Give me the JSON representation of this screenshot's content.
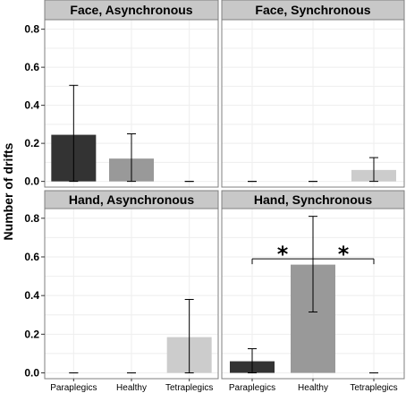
{
  "colors": {
    "strip_bg": "#c8c8c8",
    "grid": "#eeeeee",
    "panel_border": "#7f7f7f",
    "error_bar": "#000000",
    "bar_fills": [
      "#333333",
      "#999999",
      "#cccccc"
    ]
  },
  "chart_data": {
    "type": "bar",
    "layout": "facet-grid-2x2",
    "ylabel": "Number of drifts",
    "xlabel": "",
    "ylim": [
      -0.03,
      0.85
    ],
    "yticks": [
      0.0,
      0.2,
      0.4,
      0.6,
      0.8
    ],
    "ytick_labels": [
      "0.0",
      "0.2",
      "0.4",
      "0.6",
      "0.8"
    ],
    "categories": [
      "Paraplegics",
      "Healthy",
      "Tetraplegics"
    ],
    "grid": true,
    "legend": "none",
    "panels": [
      {
        "title": "Face, Asynchronous",
        "values": [
          0.245,
          0.12,
          0.0
        ],
        "err_low": [
          0.0,
          0.0,
          0.0
        ],
        "err_high": [
          0.505,
          0.25,
          0.0
        ],
        "significance": []
      },
      {
        "title": "Face, Synchronous",
        "values": [
          0.0,
          0.0,
          0.06
        ],
        "err_low": [
          0.0,
          0.0,
          0.0
        ],
        "err_high": [
          0.0,
          0.0,
          0.125
        ],
        "significance": []
      },
      {
        "title": "Hand, Asynchronous",
        "values": [
          0.0,
          0.0,
          0.185
        ],
        "err_low": [
          0.0,
          0.0,
          0.0
        ],
        "err_high": [
          0.0,
          0.0,
          0.38
        ],
        "significance": []
      },
      {
        "title": "Hand, Synchronous",
        "values": [
          0.06,
          0.56,
          0.0
        ],
        "err_low": [
          0.0,
          0.315,
          0.0
        ],
        "err_high": [
          0.125,
          0.81,
          0.0
        ],
        "significance": [
          {
            "from": 0,
            "to": 1,
            "label": "*",
            "y": 0.59
          },
          {
            "from": 1,
            "to": 2,
            "label": "*",
            "y": 0.59
          }
        ]
      }
    ]
  }
}
